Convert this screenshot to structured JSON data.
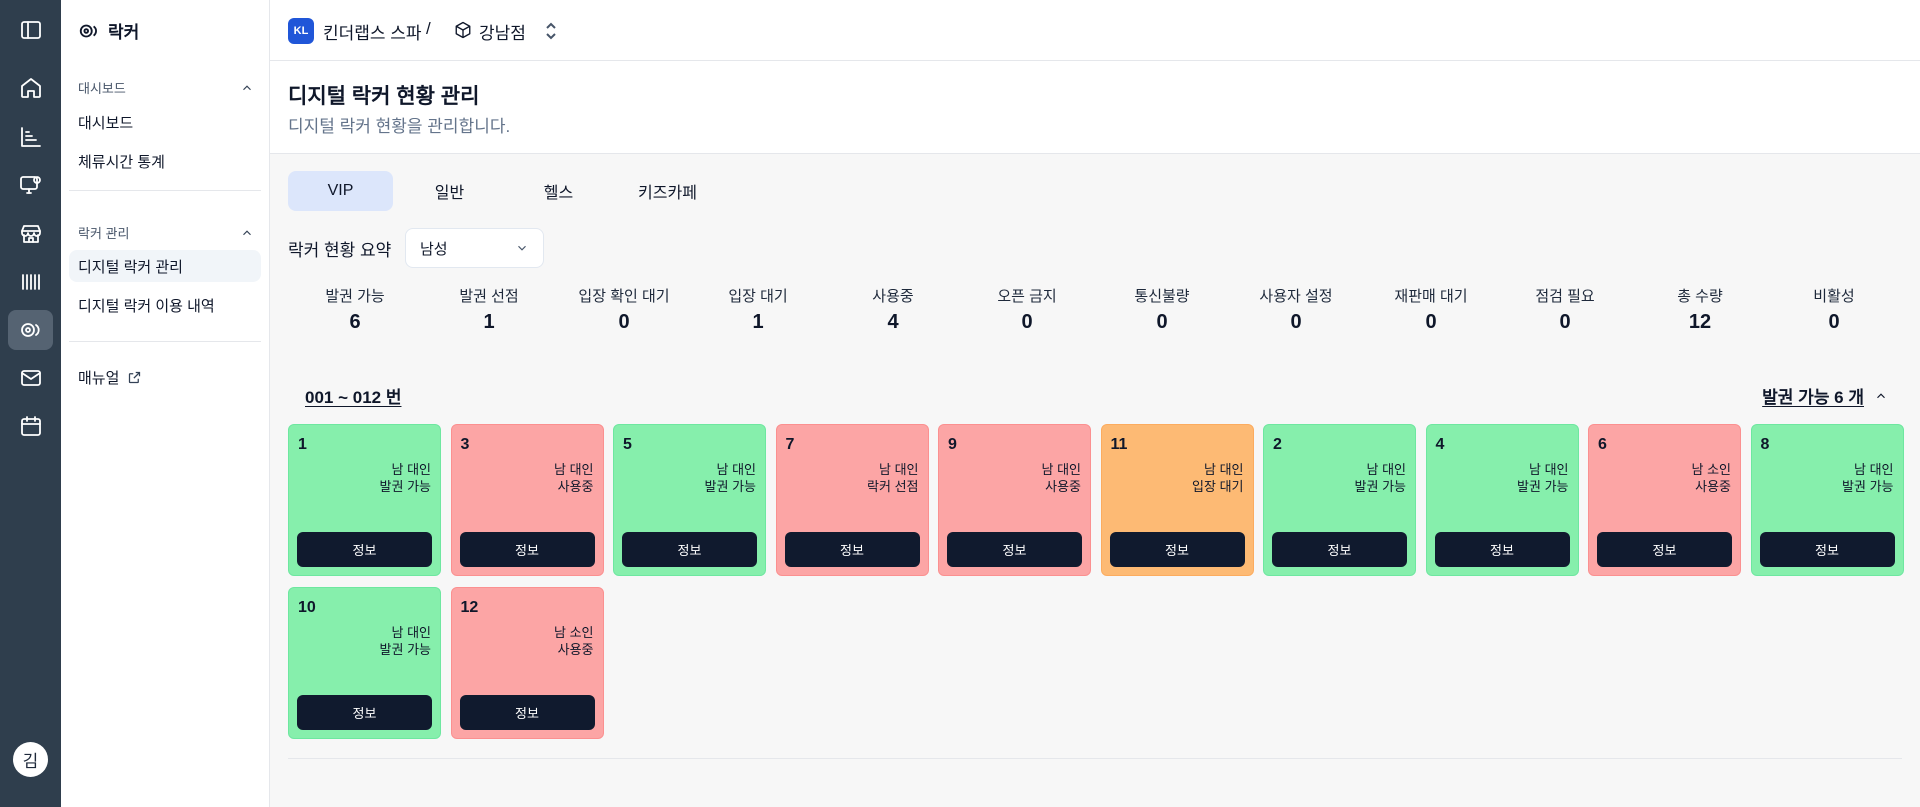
{
  "user": {
    "avatar_initial": "김"
  },
  "sidebar": {
    "brand": "락커",
    "groups": [
      {
        "title": "대시보드",
        "items": [
          "대시보드",
          "체류시간 통계"
        ]
      },
      {
        "title": "락커 관리",
        "items": [
          "디지털 락커 관리",
          "디지털 락커 이용 내역"
        ]
      }
    ],
    "manual": "매뉴얼"
  },
  "topbar": {
    "company_badge": "KL",
    "company": "킨더랩스 스파",
    "separator": "/",
    "store": "강남점"
  },
  "header": {
    "title": "디지털 락커 현황 관리",
    "subtitle": "디지털 락커 현황을 관리합니다."
  },
  "tabs": [
    "VIP",
    "일반",
    "헬스",
    "키즈카페"
  ],
  "summary": {
    "label": "락커 현황 요약",
    "filter_value": "남성",
    "stats": [
      {
        "label": "발권 가능",
        "value": "6"
      },
      {
        "label": "발권 선점",
        "value": "1"
      },
      {
        "label": "입장 확인 대기",
        "value": "0"
      },
      {
        "label": "입장 대기",
        "value": "1"
      },
      {
        "label": "사용중",
        "value": "4"
      },
      {
        "label": "오픈 금지",
        "value": "0"
      },
      {
        "label": "통신불량",
        "value": "0"
      },
      {
        "label": "사용자 설정",
        "value": "0"
      },
      {
        "label": "재판매 대기",
        "value": "0"
      },
      {
        "label": "점검 필요",
        "value": "0"
      },
      {
        "label": "총 수량",
        "value": "12"
      },
      {
        "label": "비활성",
        "value": "0"
      }
    ]
  },
  "locker_section": {
    "range": "001 ~ 012 번",
    "available_summary": "발권 가능 6 개",
    "info_button": "정보",
    "lockers": [
      {
        "number": "1",
        "type": "남 대인",
        "status": "발권 가능",
        "color": "#86efac"
      },
      {
        "number": "3",
        "type": "남 대인",
        "status": "사용중",
        "color": "#fca5a5"
      },
      {
        "number": "5",
        "type": "남 대인",
        "status": "발권 가능",
        "color": "#86efac"
      },
      {
        "number": "7",
        "type": "남 대인",
        "status": "락커 선점",
        "color": "#fca5a5"
      },
      {
        "number": "9",
        "type": "남 대인",
        "status": "사용중",
        "color": "#fca5a5"
      },
      {
        "number": "11",
        "type": "남 대인",
        "status": "입장 대기",
        "color": "#fdba74"
      },
      {
        "number": "2",
        "type": "남 대인",
        "status": "발권 가능",
        "color": "#86efac"
      },
      {
        "number": "4",
        "type": "남 대인",
        "status": "발권 가능",
        "color": "#86efac"
      },
      {
        "number": "6",
        "type": "남 소인",
        "status": "사용중",
        "color": "#fca5a5"
      },
      {
        "number": "8",
        "type": "남 대인",
        "status": "발권 가능",
        "color": "#86efac"
      },
      {
        "number": "10",
        "type": "남 대인",
        "status": "발권 가능",
        "color": "#86efac"
      },
      {
        "number": "12",
        "type": "남 소인",
        "status": "사용중",
        "color": "#fca5a5"
      }
    ]
  }
}
